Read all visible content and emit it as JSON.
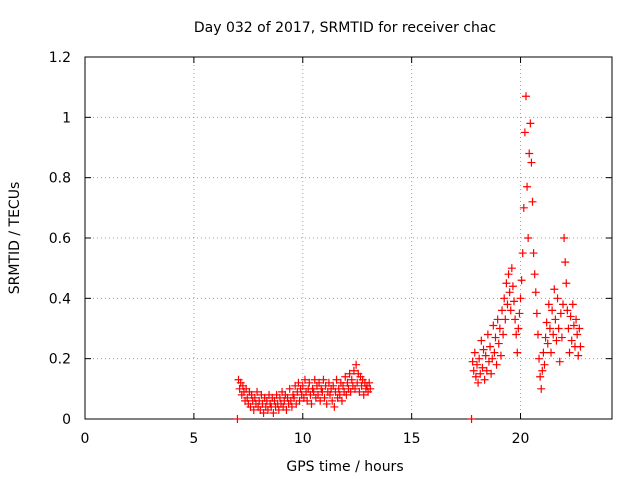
{
  "chart_data": {
    "type": "scatter",
    "title": "Day 032 of 2017, SRMTID for receiver chac",
    "xlabel": "GPS time / hours",
    "ylabel": "SRMTID / TECUs",
    "xlim": [
      0,
      24.2
    ],
    "ylim": [
      0,
      1.2
    ],
    "xticks": [
      0,
      5,
      10,
      15,
      20
    ],
    "xtick_labels": [
      "0",
      "5",
      "10",
      "15",
      "20"
    ],
    "yticks": [
      0,
      0.2,
      0.4,
      0.6,
      0.8,
      1.0,
      1.2
    ],
    "ytick_labels": [
      "0",
      "0.2",
      "0.4",
      "0.6",
      "0.8",
      "1",
      "1.2"
    ],
    "grid": true,
    "marker": "plus",
    "color": "#ff0000",
    "series": [
      {
        "name": "SRMTID",
        "points": [
          [
            7.0,
            0.0
          ],
          [
            17.75,
            0.0
          ],
          [
            7.05,
            0.13
          ],
          [
            7.1,
            0.1
          ],
          [
            7.15,
            0.12
          ],
          [
            7.2,
            0.08
          ],
          [
            7.25,
            0.11
          ],
          [
            7.3,
            0.09
          ],
          [
            7.35,
            0.06
          ],
          [
            7.4,
            0.1
          ],
          [
            7.45,
            0.07
          ],
          [
            7.5,
            0.05
          ],
          [
            7.55,
            0.09
          ],
          [
            7.6,
            0.04
          ],
          [
            7.65,
            0.08
          ],
          [
            7.7,
            0.06
          ],
          [
            7.75,
            0.03
          ],
          [
            7.8,
            0.07
          ],
          [
            7.85,
            0.05
          ],
          [
            7.9,
            0.09
          ],
          [
            7.95,
            0.04
          ],
          [
            8.0,
            0.06
          ],
          [
            8.05,
            0.03
          ],
          [
            8.1,
            0.08
          ],
          [
            8.15,
            0.05
          ],
          [
            8.2,
            0.02
          ],
          [
            8.25,
            0.07
          ],
          [
            8.3,
            0.04
          ],
          [
            8.35,
            0.06
          ],
          [
            8.4,
            0.03
          ],
          [
            8.45,
            0.08
          ],
          [
            8.5,
            0.05
          ],
          [
            8.55,
            0.04
          ],
          [
            8.6,
            0.07
          ],
          [
            8.65,
            0.02
          ],
          [
            8.7,
            0.06
          ],
          [
            8.75,
            0.04
          ],
          [
            8.8,
            0.08
          ],
          [
            8.85,
            0.05
          ],
          [
            8.9,
            0.03
          ],
          [
            8.95,
            0.07
          ],
          [
            9.0,
            0.05
          ],
          [
            9.05,
            0.09
          ],
          [
            9.1,
            0.04
          ],
          [
            9.15,
            0.06
          ],
          [
            9.2,
            0.08
          ],
          [
            9.25,
            0.03
          ],
          [
            9.3,
            0.07
          ],
          [
            9.35,
            0.05
          ],
          [
            9.4,
            0.1
          ],
          [
            9.45,
            0.06
          ],
          [
            9.5,
            0.04
          ],
          [
            9.55,
            0.08
          ],
          [
            9.6,
            0.07
          ],
          [
            9.65,
            0.11
          ],
          [
            9.7,
            0.05
          ],
          [
            9.75,
            0.09
          ],
          [
            9.8,
            0.12
          ],
          [
            9.85,
            0.06
          ],
          [
            9.9,
            0.1
          ],
          [
            9.95,
            0.08
          ],
          [
            10.0,
            0.11
          ],
          [
            10.05,
            0.07
          ],
          [
            10.1,
            0.13
          ],
          [
            10.15,
            0.09
          ],
          [
            10.2,
            0.06
          ],
          [
            10.25,
            0.1
          ],
          [
            10.3,
            0.12
          ],
          [
            10.35,
            0.08
          ],
          [
            10.4,
            0.05
          ],
          [
            10.45,
            0.1
          ],
          [
            10.5,
            0.09
          ],
          [
            10.55,
            0.13
          ],
          [
            10.6,
            0.07
          ],
          [
            10.65,
            0.11
          ],
          [
            10.7,
            0.08
          ],
          [
            10.75,
            0.12
          ],
          [
            10.8,
            0.06
          ],
          [
            10.85,
            0.1
          ],
          [
            10.9,
            0.09
          ],
          [
            10.95,
            0.13
          ],
          [
            11.0,
            0.07
          ],
          [
            11.05,
            0.11
          ],
          [
            11.1,
            0.05
          ],
          [
            11.15,
            0.09
          ],
          [
            11.2,
            0.12
          ],
          [
            11.25,
            0.08
          ],
          [
            11.3,
            0.1
          ],
          [
            11.35,
            0.06
          ],
          [
            11.4,
            0.11
          ],
          [
            11.45,
            0.04
          ],
          [
            11.5,
            0.09
          ],
          [
            11.55,
            0.13
          ],
          [
            11.6,
            0.07
          ],
          [
            11.65,
            0.1
          ],
          [
            11.7,
            0.08
          ],
          [
            11.75,
            0.12
          ],
          [
            11.8,
            0.06
          ],
          [
            11.85,
            0.11
          ],
          [
            11.9,
            0.09
          ],
          [
            11.95,
            0.14
          ],
          [
            12.0,
            0.08
          ],
          [
            12.05,
            0.12
          ],
          [
            12.1,
            0.1
          ],
          [
            12.15,
            0.15
          ],
          [
            12.2,
            0.09
          ],
          [
            12.25,
            0.13
          ],
          [
            12.3,
            0.11
          ],
          [
            12.35,
            0.16
          ],
          [
            12.4,
            0.1
          ],
          [
            12.45,
            0.18
          ],
          [
            12.5,
            0.12
          ],
          [
            12.55,
            0.15
          ],
          [
            12.6,
            0.09
          ],
          [
            12.65,
            0.14
          ],
          [
            12.7,
            0.11
          ],
          [
            12.75,
            0.13
          ],
          [
            12.8,
            0.08
          ],
          [
            12.85,
            0.12
          ],
          [
            12.9,
            0.1
          ],
          [
            12.95,
            0.11
          ],
          [
            13.0,
            0.09
          ],
          [
            13.05,
            0.12
          ],
          [
            13.1,
            0.1
          ],
          [
            17.8,
            0.19
          ],
          [
            17.85,
            0.16
          ],
          [
            17.9,
            0.22
          ],
          [
            17.95,
            0.14
          ],
          [
            18.0,
            0.18
          ],
          [
            18.05,
            0.12
          ],
          [
            18.1,
            0.2
          ],
          [
            18.15,
            0.15
          ],
          [
            18.2,
            0.26
          ],
          [
            18.25,
            0.17
          ],
          [
            18.3,
            0.23
          ],
          [
            18.35,
            0.13
          ],
          [
            18.4,
            0.21
          ],
          [
            18.45,
            0.16
          ],
          [
            18.5,
            0.28
          ],
          [
            18.55,
            0.19
          ],
          [
            18.6,
            0.24
          ],
          [
            18.65,
            0.15
          ],
          [
            18.7,
            0.2
          ],
          [
            18.75,
            0.31
          ],
          [
            18.8,
            0.22
          ],
          [
            18.85,
            0.27
          ],
          [
            18.9,
            0.18
          ],
          [
            18.95,
            0.33
          ],
          [
            19.0,
            0.25
          ],
          [
            19.05,
            0.3
          ],
          [
            19.1,
            0.21
          ],
          [
            19.15,
            0.36
          ],
          [
            19.2,
            0.28
          ],
          [
            19.25,
            0.4
          ],
          [
            19.3,
            0.33
          ],
          [
            19.35,
            0.45
          ],
          [
            19.4,
            0.38
          ],
          [
            19.45,
            0.48
          ],
          [
            19.5,
            0.42
          ],
          [
            19.55,
            0.36
          ],
          [
            19.6,
            0.5
          ],
          [
            19.65,
            0.44
          ],
          [
            19.7,
            0.39
          ],
          [
            19.75,
            0.33
          ],
          [
            19.8,
            0.28
          ],
          [
            19.85,
            0.22
          ],
          [
            19.9,
            0.3
          ],
          [
            19.95,
            0.35
          ],
          [
            20.0,
            0.4
          ],
          [
            20.05,
            0.46
          ],
          [
            20.1,
            0.55
          ],
          [
            20.15,
            0.7
          ],
          [
            20.2,
            0.95
          ],
          [
            20.25,
            1.07
          ],
          [
            20.3,
            0.77
          ],
          [
            20.35,
            0.6
          ],
          [
            20.4,
            0.88
          ],
          [
            20.45,
            0.98
          ],
          [
            20.5,
            0.85
          ],
          [
            20.55,
            0.72
          ],
          [
            20.6,
            0.55
          ],
          [
            20.65,
            0.48
          ],
          [
            20.7,
            0.42
          ],
          [
            20.75,
            0.35
          ],
          [
            20.8,
            0.28
          ],
          [
            20.85,
            0.2
          ],
          [
            20.9,
            0.14
          ],
          [
            20.95,
            0.1
          ],
          [
            21.0,
            0.16
          ],
          [
            21.05,
            0.22
          ],
          [
            21.1,
            0.18
          ],
          [
            21.15,
            0.27
          ],
          [
            21.2,
            0.32
          ],
          [
            21.25,
            0.25
          ],
          [
            21.3,
            0.38
          ],
          [
            21.35,
            0.3
          ],
          [
            21.4,
            0.22
          ],
          [
            21.45,
            0.36
          ],
          [
            21.5,
            0.28
          ],
          [
            21.55,
            0.43
          ],
          [
            21.6,
            0.33
          ],
          [
            21.65,
            0.26
          ],
          [
            21.7,
            0.4
          ],
          [
            21.75,
            0.3
          ],
          [
            21.8,
            0.19
          ],
          [
            21.85,
            0.35
          ],
          [
            21.9,
            0.27
          ],
          [
            21.95,
            0.38
          ],
          [
            22.0,
            0.6
          ],
          [
            22.05,
            0.52
          ],
          [
            22.1,
            0.45
          ],
          [
            22.15,
            0.36
          ],
          [
            22.2,
            0.3
          ],
          [
            22.25,
            0.22
          ],
          [
            22.3,
            0.34
          ],
          [
            22.35,
            0.26
          ],
          [
            22.4,
            0.38
          ],
          [
            22.45,
            0.31
          ],
          [
            22.5,
            0.24
          ],
          [
            22.55,
            0.33
          ],
          [
            22.6,
            0.28
          ],
          [
            22.65,
            0.21
          ],
          [
            22.7,
            0.3
          ],
          [
            22.75,
            0.24
          ]
        ]
      }
    ]
  }
}
